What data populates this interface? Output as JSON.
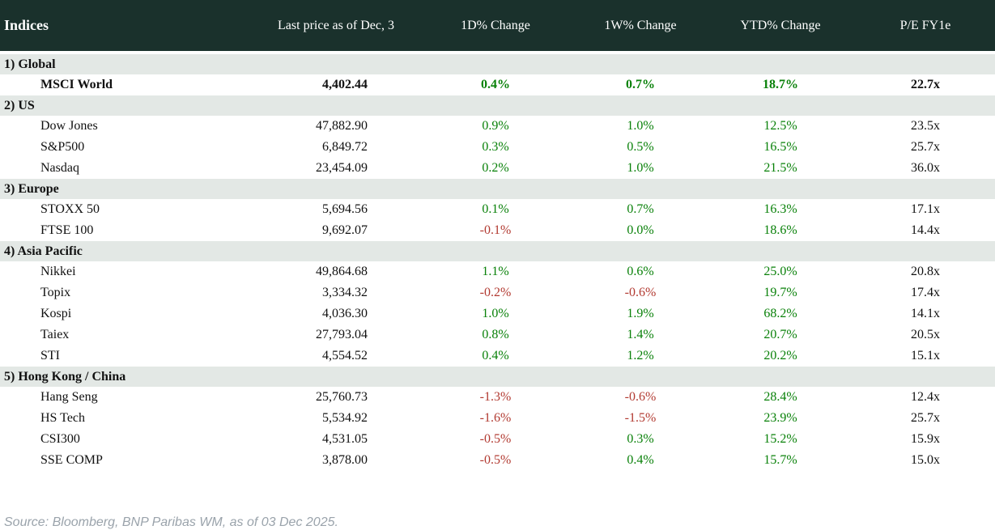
{
  "table": {
    "columns": [
      "Indices",
      "Last price as of Dec, 3",
      "1D% Change",
      "1W% Change",
      "YTD% Change",
      "P/E FY1e"
    ],
    "sections": [
      {
        "label": "1) Global",
        "rows": [
          {
            "name": "MSCI World",
            "price": "4,402.44",
            "d1": "0.4%",
            "w1": "0.7%",
            "ytd": "18.7%",
            "pe": "22.7x",
            "emphasis": true
          }
        ]
      },
      {
        "label": "2) US",
        "rows": [
          {
            "name": "Dow Jones",
            "price": "47,882.90",
            "d1": "0.9%",
            "w1": "1.0%",
            "ytd": "12.5%",
            "pe": "23.5x"
          },
          {
            "name": "S&P500",
            "price": "6,849.72",
            "d1": "0.3%",
            "w1": "0.5%",
            "ytd": "16.5%",
            "pe": "25.7x"
          },
          {
            "name": "Nasdaq",
            "price": "23,454.09",
            "d1": "0.2%",
            "w1": "1.0%",
            "ytd": "21.5%",
            "pe": "36.0x"
          }
        ]
      },
      {
        "label": "3) Europe",
        "rows": [
          {
            "name": "STOXX 50",
            "price": "5,694.56",
            "d1": "0.1%",
            "w1": "0.7%",
            "ytd": "16.3%",
            "pe": "17.1x"
          },
          {
            "name": "FTSE 100",
            "price": "9,692.07",
            "d1": "-0.1%",
            "w1": "0.0%",
            "ytd": "18.6%",
            "pe": "14.4x"
          }
        ]
      },
      {
        "label": "4) Asia Pacific",
        "rows": [
          {
            "name": "Nikkei",
            "price": "49,864.68",
            "d1": "1.1%",
            "w1": "0.6%",
            "ytd": "25.0%",
            "pe": "20.8x"
          },
          {
            "name": "Topix",
            "price": "3,334.32",
            "d1": "-0.2%",
            "w1": "-0.6%",
            "ytd": "19.7%",
            "pe": "17.4x"
          },
          {
            "name": "Kospi",
            "price": "4,036.30",
            "d1": "1.0%",
            "w1": "1.9%",
            "ytd": "68.2%",
            "pe": "14.1x"
          },
          {
            "name": "Taiex",
            "price": "27,793.04",
            "d1": "0.8%",
            "w1": "1.4%",
            "ytd": "20.7%",
            "pe": "20.5x"
          },
          {
            "name": "STI",
            "price": "4,554.52",
            "d1": "0.4%",
            "w1": "1.2%",
            "ytd": "20.2%",
            "pe": "15.1x"
          }
        ]
      },
      {
        "label": "5) Hong Kong / China",
        "rows": [
          {
            "name": "Hang Seng",
            "price": "25,760.73",
            "d1": "-1.3%",
            "w1": "-0.6%",
            "ytd": "28.4%",
            "pe": "12.4x"
          },
          {
            "name": "HS Tech",
            "price": "5,534.92",
            "d1": "-1.6%",
            "w1": "-1.5%",
            "ytd": "23.9%",
            "pe": "25.7x"
          },
          {
            "name": "CSI300",
            "price": "4,531.05",
            "d1": "-0.5%",
            "w1": "0.3%",
            "ytd": "15.2%",
            "pe": "15.9x"
          },
          {
            "name": "SSE COMP",
            "price": "3,878.00",
            "d1": "-0.5%",
            "w1": "0.4%",
            "ytd": "15.7%",
            "pe": "15.0x"
          }
        ]
      }
    ]
  },
  "footer": {
    "source": "Source: Bloomberg, BNP Paribas WM, as of 03 Dec 2025."
  },
  "colors": {
    "header_background": "#1a312c",
    "header_text": "#ffffff",
    "section_band": "#e3e8e5",
    "positive_change": "#098109",
    "negative_change": "#b23a31",
    "body_text": "#111111",
    "source_text": "#9aa3ab"
  },
  "chart_data": {
    "type": "table",
    "title": "Indices",
    "columns": [
      "Indices",
      "Last price as of Dec, 3",
      "1D% Change",
      "1W% Change",
      "YTD% Change",
      "P/E FY1e"
    ],
    "rows": [
      {
        "section": "1) Global",
        "index": "MSCI World",
        "last_price": 4402.44,
        "chg_1d_pct": 0.4,
        "chg_1w_pct": 0.7,
        "chg_ytd_pct": 18.7,
        "pe_fy1e": 22.7
      },
      {
        "section": "2) US",
        "index": "Dow Jones",
        "last_price": 47882.9,
        "chg_1d_pct": 0.9,
        "chg_1w_pct": 1.0,
        "chg_ytd_pct": 12.5,
        "pe_fy1e": 23.5
      },
      {
        "section": "2) US",
        "index": "S&P500",
        "last_price": 6849.72,
        "chg_1d_pct": 0.3,
        "chg_1w_pct": 0.5,
        "chg_ytd_pct": 16.5,
        "pe_fy1e": 25.7
      },
      {
        "section": "2) US",
        "index": "Nasdaq",
        "last_price": 23454.09,
        "chg_1d_pct": 0.2,
        "chg_1w_pct": 1.0,
        "chg_ytd_pct": 21.5,
        "pe_fy1e": 36.0
      },
      {
        "section": "3) Europe",
        "index": "STOXX 50",
        "last_price": 5694.56,
        "chg_1d_pct": 0.1,
        "chg_1w_pct": 0.7,
        "chg_ytd_pct": 16.3,
        "pe_fy1e": 17.1
      },
      {
        "section": "3) Europe",
        "index": "FTSE 100",
        "last_price": 9692.07,
        "chg_1d_pct": -0.1,
        "chg_1w_pct": 0.0,
        "chg_ytd_pct": 18.6,
        "pe_fy1e": 14.4
      },
      {
        "section": "4) Asia Pacific",
        "index": "Nikkei",
        "last_price": 49864.68,
        "chg_1d_pct": 1.1,
        "chg_1w_pct": 0.6,
        "chg_ytd_pct": 25.0,
        "pe_fy1e": 20.8
      },
      {
        "section": "4) Asia Pacific",
        "index": "Topix",
        "last_price": 3334.32,
        "chg_1d_pct": -0.2,
        "chg_1w_pct": -0.6,
        "chg_ytd_pct": 19.7,
        "pe_fy1e": 17.4
      },
      {
        "section": "4) Asia Pacific",
        "index": "Kospi",
        "last_price": 4036.3,
        "chg_1d_pct": 1.0,
        "chg_1w_pct": 1.9,
        "chg_ytd_pct": 68.2,
        "pe_fy1e": 14.1
      },
      {
        "section": "4) Asia Pacific",
        "index": "Taiex",
        "last_price": 27793.04,
        "chg_1d_pct": 0.8,
        "chg_1w_pct": 1.4,
        "chg_ytd_pct": 20.7,
        "pe_fy1e": 20.5
      },
      {
        "section": "4) Asia Pacific",
        "index": "STI",
        "last_price": 4554.52,
        "chg_1d_pct": 0.4,
        "chg_1w_pct": 1.2,
        "chg_ytd_pct": 20.2,
        "pe_fy1e": 15.1
      },
      {
        "section": "5) Hong Kong / China",
        "index": "Hang Seng",
        "last_price": 25760.73,
        "chg_1d_pct": -1.3,
        "chg_1w_pct": -0.6,
        "chg_ytd_pct": 28.4,
        "pe_fy1e": 12.4
      },
      {
        "section": "5) Hong Kong / China",
        "index": "HS Tech",
        "last_price": 5534.92,
        "chg_1d_pct": -1.6,
        "chg_1w_pct": -1.5,
        "chg_ytd_pct": 23.9,
        "pe_fy1e": 25.7
      },
      {
        "section": "5) Hong Kong / China",
        "index": "CSI300",
        "last_price": 4531.05,
        "chg_1d_pct": -0.5,
        "chg_1w_pct": 0.3,
        "chg_ytd_pct": 15.2,
        "pe_fy1e": 15.9
      },
      {
        "section": "5) Hong Kong / China",
        "index": "SSE COMP",
        "last_price": 3878.0,
        "chg_1d_pct": -0.5,
        "chg_1w_pct": 0.4,
        "chg_ytd_pct": 15.7,
        "pe_fy1e": 15.0
      }
    ],
    "notes": "Positive % changes rendered green, negative red; MSCI World row bold."
  }
}
